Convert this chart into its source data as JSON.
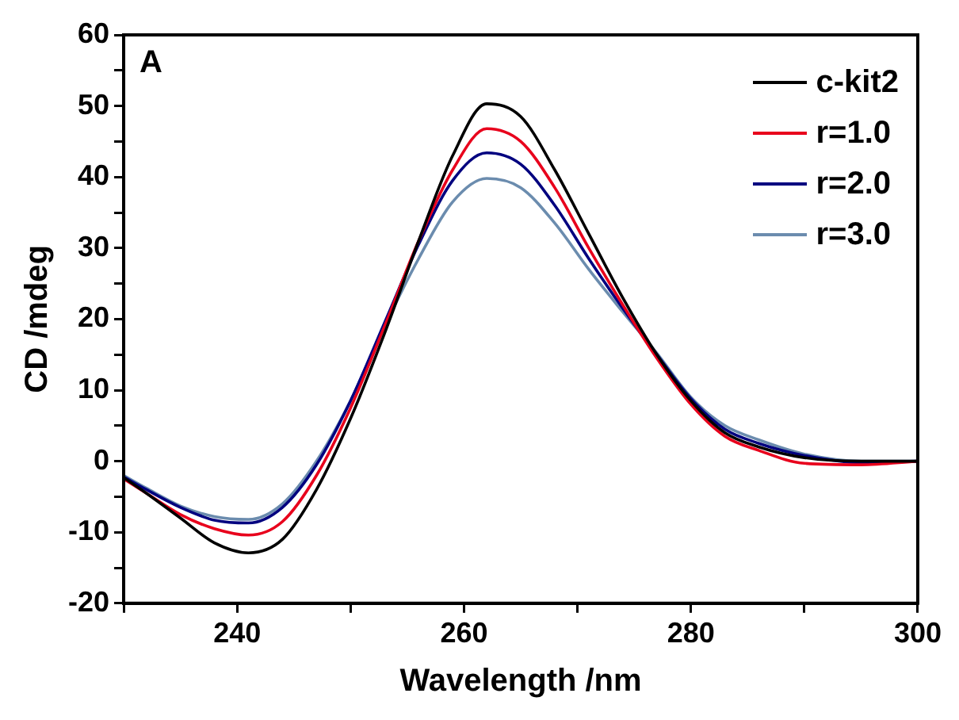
{
  "chart_data": {
    "type": "line",
    "xlabel": "Wavelength /nm",
    "ylabel": "CD /mdeg",
    "annotations": [
      "A"
    ],
    "x": [
      230,
      232,
      235,
      238,
      241,
      244,
      247,
      250,
      253,
      256,
      259,
      262,
      265,
      268,
      271,
      274,
      277,
      280,
      283,
      286,
      290,
      295,
      300
    ],
    "series": [
      {
        "name": "c-kit2",
        "color": "#000000",
        "values": [
          -2.3,
          -4.5,
          -8,
          -11.5,
          -12.9,
          -11,
          -4,
          6,
          18,
          31,
          43,
          50.3,
          48.5,
          41,
          32,
          23,
          15,
          8.5,
          4,
          2,
          0.5,
          0,
          0
        ]
      },
      {
        "name": "r=1.0",
        "color": "#e8001c",
        "values": [
          -2.5,
          -4.5,
          -7.5,
          -9.5,
          -10.4,
          -8.5,
          -2,
          7.5,
          19,
          31,
          41,
          46.8,
          45,
          38.5,
          30,
          22,
          14.5,
          8,
          3.5,
          1.5,
          -0.3,
          -0.5,
          0
        ]
      },
      {
        "name": "r=2.0",
        "color": "#00007f",
        "values": [
          -2.2,
          -4,
          -6.5,
          -8.3,
          -8.7,
          -6.5,
          -0.5,
          8.5,
          19.5,
          30.5,
          39.5,
          43.4,
          41.8,
          36,
          28.5,
          21.5,
          15,
          8.8,
          4.5,
          2.5,
          0.8,
          -0.2,
          0
        ]
      },
      {
        "name": "r=3.0",
        "color": "#6b8cae",
        "values": [
          -2,
          -3.8,
          -6.3,
          -7.8,
          -8.2,
          -6,
          0,
          8.5,
          19,
          28.5,
          36.5,
          39.8,
          38.5,
          33.5,
          27,
          21,
          15.2,
          9,
          5,
          3,
          1,
          0,
          0
        ]
      }
    ],
    "xlim": [
      230,
      300
    ],
    "xticks": [
      {
        "value": 230,
        "label": null
      },
      240,
      {
        "value": 250,
        "label": null
      },
      260,
      {
        "value": 270,
        "label": null
      },
      280,
      {
        "value": 290,
        "label": null
      },
      300
    ],
    "ylim": [
      -20,
      60
    ],
    "yticks": [
      -20,
      {
        "value": -15,
        "label": null
      },
      -10,
      {
        "value": -5,
        "label": null
      },
      0,
      {
        "value": 5,
        "label": null
      },
      10,
      {
        "value": 15,
        "label": null
      },
      20,
      {
        "value": 25,
        "label": null
      },
      30,
      {
        "value": 35,
        "label": null
      },
      40,
      {
        "value": 45,
        "label": null
      },
      50,
      {
        "value": 55,
        "label": null
      },
      60
    ],
    "grid": false,
    "legend": "top right",
    "marker": "none",
    "line_style": "solid"
  }
}
